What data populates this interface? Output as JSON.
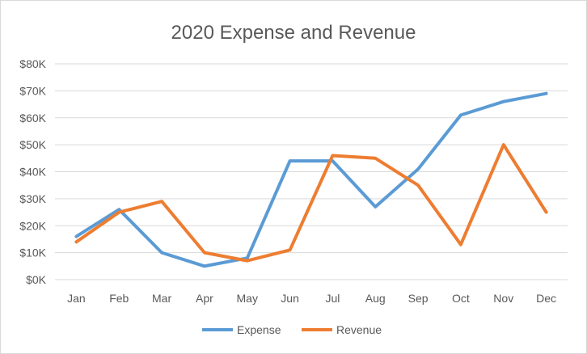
{
  "chart_data": {
    "type": "line",
    "title": "2020 Expense and Revenue",
    "xlabel": "",
    "ylabel": "",
    "categories": [
      "Jan",
      "Feb",
      "Mar",
      "Apr",
      "May",
      "Jun",
      "Jul",
      "Aug",
      "Sep",
      "Oct",
      "Nov",
      "Dec"
    ],
    "y_ticks": [
      0,
      10000,
      20000,
      30000,
      40000,
      50000,
      60000,
      70000,
      80000
    ],
    "y_tick_labels": [
      "$0K",
      "$10K",
      "$20K",
      "$30K",
      "$40K",
      "$50K",
      "$60K",
      "$70K",
      "$80K"
    ],
    "ylim": [
      0,
      80000
    ],
    "grid": true,
    "legend_position": "bottom",
    "series": [
      {
        "name": "Expense",
        "color": "#5b9bd5",
        "values": [
          16000,
          26000,
          10000,
          5000,
          8000,
          44000,
          44000,
          27000,
          41000,
          61000,
          66000,
          69000
        ]
      },
      {
        "name": "Revenue",
        "color": "#ed7d31",
        "values": [
          14000,
          25000,
          29000,
          10000,
          7000,
          11000,
          46000,
          45000,
          35000,
          13000,
          50000,
          25000
        ]
      }
    ]
  }
}
